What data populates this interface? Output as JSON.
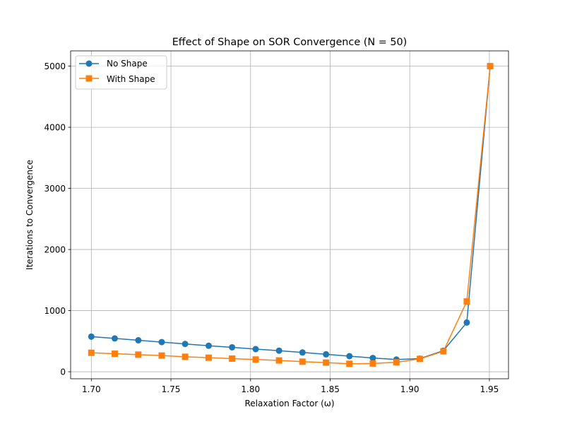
{
  "chart_data": {
    "type": "line",
    "title": "Effect of Shape on SOR Convergence (N = 50)",
    "xlabel": "Relaxation Factor (ω)",
    "ylabel": "Iterations to Convergence",
    "xlim": [
      1.687,
      1.962
    ],
    "ylim": [
      -115,
      5250
    ],
    "xticks": [
      1.7,
      1.75,
      1.8,
      1.85,
      1.9,
      1.95
    ],
    "xtick_labels": [
      "1.70",
      "1.75",
      "1.80",
      "1.85",
      "1.90",
      "1.95"
    ],
    "yticks": [
      0,
      1000,
      2000,
      3000,
      4000,
      5000
    ],
    "ytick_labels": [
      "0",
      "1000",
      "2000",
      "3000",
      "4000",
      "5000"
    ],
    "grid": true,
    "legend_location": "top-left",
    "x": [
      1.7,
      1.7147,
      1.7295,
      1.7442,
      1.7589,
      1.7737,
      1.7884,
      1.8032,
      1.8179,
      1.8326,
      1.8474,
      1.8621,
      1.8768,
      1.8916,
      1.9063,
      1.9211,
      1.9358,
      1.9505
    ],
    "series": [
      {
        "name": "No Shape",
        "color": "#1f77b4",
        "marker": "circle",
        "values": [
          575,
          545,
          515,
          485,
          455,
          425,
          400,
          370,
          345,
          315,
          285,
          255,
          225,
          200,
          215,
          345,
          805,
          5000
        ]
      },
      {
        "name": "With Shape",
        "color": "#ff7f0e",
        "marker": "square",
        "values": [
          310,
          295,
          280,
          265,
          245,
          230,
          215,
          200,
          185,
          165,
          150,
          130,
          135,
          155,
          210,
          335,
          1150,
          5000
        ]
      }
    ]
  }
}
